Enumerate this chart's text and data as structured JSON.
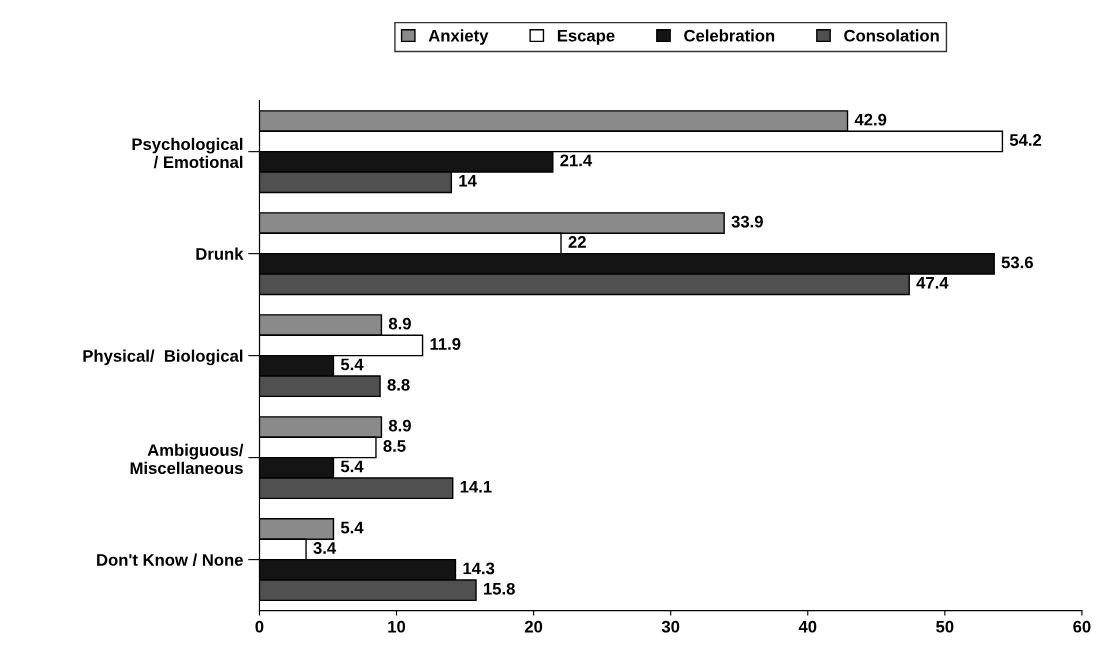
{
  "chart_data": {
    "type": "bar",
    "orientation": "horizontal",
    "categories": [
      "Psychological\n/ Emotional",
      "Drunk",
      "Physical/  Biological",
      "Ambiguous/\nMiscellaneous",
      "Don't Know / None"
    ],
    "series": [
      {
        "name": "Anxiety",
        "color": "#8a8a8a",
        "values": [
          42.9,
          33.9,
          8.9,
          8.9,
          5.4
        ]
      },
      {
        "name": "Escape",
        "color": "#ffffff",
        "values": [
          54.2,
          22,
          11.9,
          8.5,
          3.4
        ]
      },
      {
        "name": "Celebration",
        "color": "#141414",
        "values": [
          21.4,
          53.6,
          5.4,
          5.4,
          14.3
        ]
      },
      {
        "name": "Consolation",
        "color": "#505050",
        "values": [
          14,
          47.4,
          8.8,
          14.1,
          15.8
        ]
      }
    ],
    "xlim": [
      0,
      60
    ],
    "xticks": [
      0,
      10,
      20,
      30,
      40,
      50,
      60
    ],
    "data_labels": true,
    "legend": "top",
    "grid": false
  }
}
